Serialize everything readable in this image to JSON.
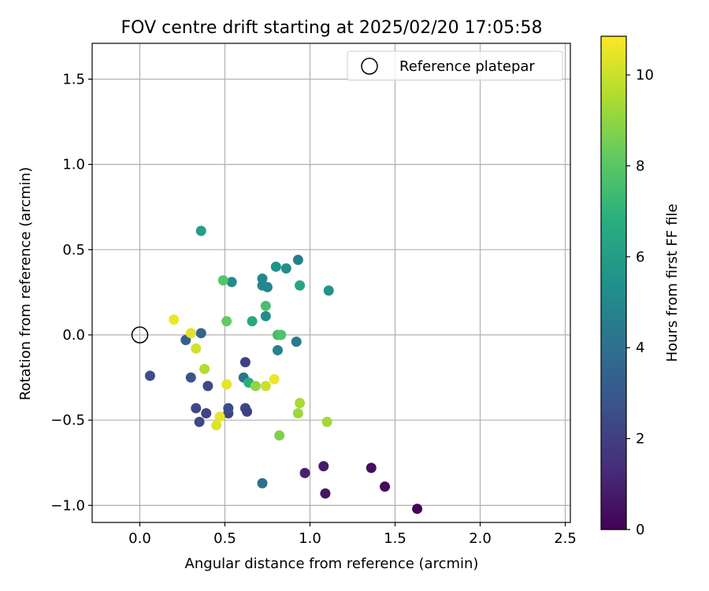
{
  "chart_data": {
    "type": "scatter",
    "title": "FOV centre drift starting at 2025/02/20 17:05:58",
    "xlabel": "Angular distance from reference (arcmin)",
    "ylabel": "Rotation from reference (arcmin)",
    "xlim": [
      -0.28,
      2.53
    ],
    "ylim": [
      -1.1,
      1.71
    ],
    "xticks": [
      0.0,
      0.5,
      1.0,
      1.5,
      2.0,
      2.5
    ],
    "xtick_labels": [
      "0.0",
      "0.5",
      "1.0",
      "1.5",
      "2.0",
      "2.5"
    ],
    "yticks": [
      -1.0,
      -0.5,
      0.0,
      0.5,
      1.0,
      1.5
    ],
    "ytick_labels": [
      "−1.0",
      "−0.5",
      "0.0",
      "0.5",
      "1.0",
      "1.5"
    ],
    "grid": true,
    "legend": {
      "entries": [
        "Reference platepar"
      ],
      "placement": "top-right"
    },
    "reference_point": {
      "x": 0.0,
      "y": 0.0
    },
    "colorbar": {
      "label": "Hours from first FF file",
      "colormap": "viridis",
      "range": [
        0,
        10.85
      ],
      "ticks": [
        0,
        2,
        4,
        6,
        8,
        10
      ],
      "tick_labels": [
        "0",
        "2",
        "4",
        "6",
        "8",
        "10"
      ]
    },
    "points": [
      {
        "x": 1.63,
        "y": -1.02,
        "c": 0.1
      },
      {
        "x": 1.44,
        "y": -0.89,
        "c": 0.3
      },
      {
        "x": 1.36,
        "y": -0.78,
        "c": 0.4
      },
      {
        "x": 1.09,
        "y": -0.93,
        "c": 0.6
      },
      {
        "x": 1.08,
        "y": -0.77,
        "c": 0.8
      },
      {
        "x": 0.97,
        "y": -0.81,
        "c": 1.0
      },
      {
        "x": 0.06,
        "y": -0.24,
        "c": 2.6
      },
      {
        "x": 0.35,
        "y": -0.51,
        "c": 2.4
      },
      {
        "x": 0.33,
        "y": -0.43,
        "c": 2.3
      },
      {
        "x": 0.39,
        "y": -0.46,
        "c": 2.2
      },
      {
        "x": 0.4,
        "y": -0.3,
        "c": 2.4
      },
      {
        "x": 0.3,
        "y": -0.25,
        "c": 2.8
      },
      {
        "x": 0.52,
        "y": -0.46,
        "c": 2.0
      },
      {
        "x": 0.52,
        "y": -0.43,
        "c": 2.5
      },
      {
        "x": 0.62,
        "y": -0.43,
        "c": 2.3
      },
      {
        "x": 0.63,
        "y": -0.45,
        "c": 2.1
      },
      {
        "x": 0.62,
        "y": -0.16,
        "c": 2.1
      },
      {
        "x": 0.27,
        "y": -0.03,
        "c": 3.2
      },
      {
        "x": 0.36,
        "y": 0.01,
        "c": 3.6
      },
      {
        "x": 0.72,
        "y": -0.87,
        "c": 4.0
      },
      {
        "x": 0.61,
        "y": -0.25,
        "c": 4.2
      },
      {
        "x": 0.92,
        "y": -0.04,
        "c": 4.4
      },
      {
        "x": 0.81,
        "y": -0.09,
        "c": 4.8
      },
      {
        "x": 0.93,
        "y": 0.44,
        "c": 4.7
      },
      {
        "x": 0.72,
        "y": 0.33,
        "c": 5.0
      },
      {
        "x": 0.72,
        "y": 0.29,
        "c": 4.9
      },
      {
        "x": 0.75,
        "y": 0.28,
        "c": 5.0
      },
      {
        "x": 0.54,
        "y": 0.31,
        "c": 5.1
      },
      {
        "x": 0.74,
        "y": 0.11,
        "c": 5.3
      },
      {
        "x": 0.8,
        "y": 0.4,
        "c": 5.5
      },
      {
        "x": 0.86,
        "y": 0.39,
        "c": 5.2
      },
      {
        "x": 1.11,
        "y": 0.26,
        "c": 5.6
      },
      {
        "x": 0.36,
        "y": 0.61,
        "c": 6.1
      },
      {
        "x": 0.94,
        "y": 0.29,
        "c": 6.3
      },
      {
        "x": 0.66,
        "y": 0.08,
        "c": 6.4
      },
      {
        "x": 0.64,
        "y": -0.28,
        "c": 6.8
      },
      {
        "x": 0.74,
        "y": 0.17,
        "c": 7.6
      },
      {
        "x": 0.81,
        "y": 0.0,
        "c": 7.4
      },
      {
        "x": 0.83,
        "y": 0.0,
        "c": 7.8
      },
      {
        "x": 0.49,
        "y": 0.32,
        "c": 7.9
      },
      {
        "x": 0.51,
        "y": 0.08,
        "c": 8.2
      },
      {
        "x": 0.82,
        "y": -0.59,
        "c": 8.7
      },
      {
        "x": 0.68,
        "y": -0.3,
        "c": 9.0
      },
      {
        "x": 0.93,
        "y": -0.46,
        "c": 9.2
      },
      {
        "x": 0.94,
        "y": -0.4,
        "c": 9.4
      },
      {
        "x": 1.1,
        "y": -0.51,
        "c": 9.3
      },
      {
        "x": 0.38,
        "y": -0.2,
        "c": 9.6
      },
      {
        "x": 0.33,
        "y": -0.08,
        "c": 10.1
      },
      {
        "x": 0.3,
        "y": 0.01,
        "c": 10.4
      },
      {
        "x": 0.2,
        "y": 0.09,
        "c": 10.6
      },
      {
        "x": 0.51,
        "y": -0.29,
        "c": 10.5
      },
      {
        "x": 0.74,
        "y": -0.3,
        "c": 10.0
      },
      {
        "x": 0.79,
        "y": -0.26,
        "c": 10.6
      },
      {
        "x": 0.45,
        "y": -0.53,
        "c": 10.3
      },
      {
        "x": 0.47,
        "y": -0.48,
        "c": 10.5
      }
    ]
  }
}
